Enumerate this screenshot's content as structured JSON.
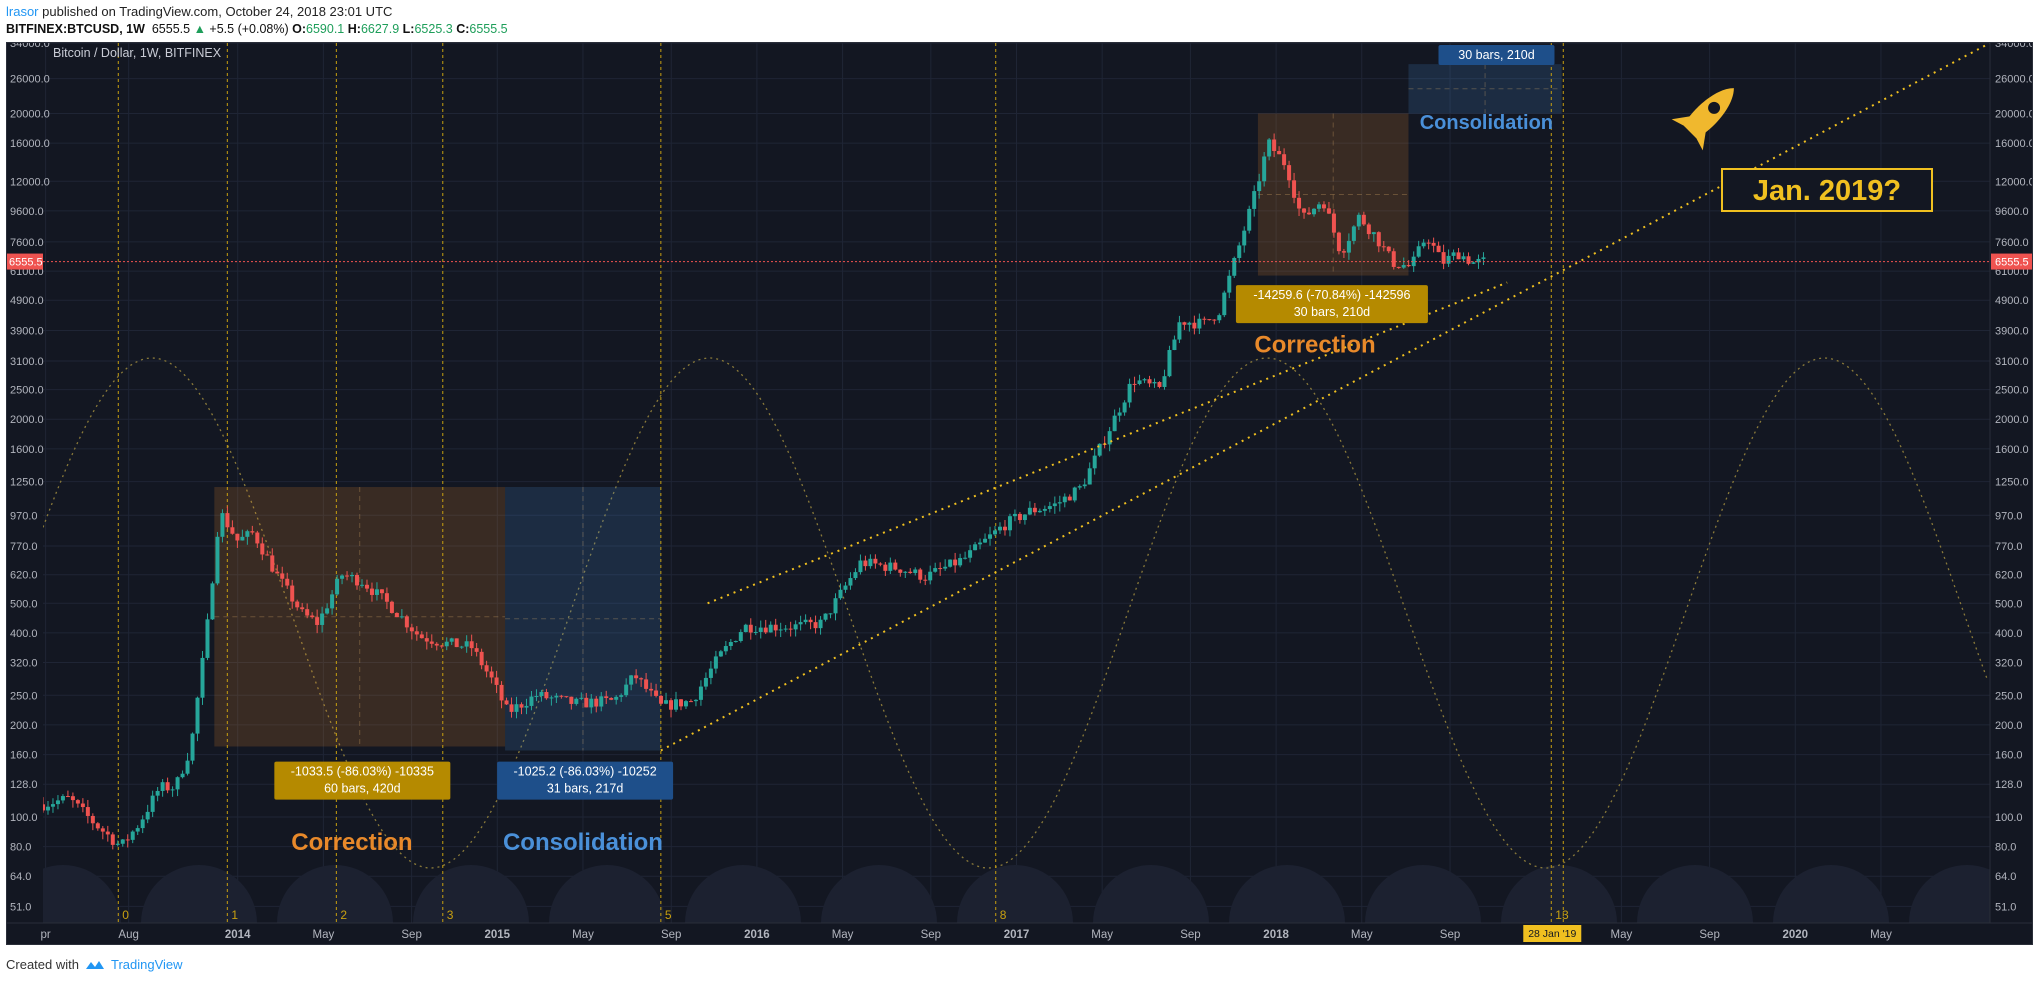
{
  "header": {
    "author": "lrasor",
    "published_text": "published on TradingView.com, October 24, 2018 23:01 UTC"
  },
  "ohlc": {
    "symbol": "BITFINEX:BTCUSD, 1W",
    "last": "6555.5",
    "change_arrow": "▲",
    "change": "+5.5 (+0.08%)",
    "o_label": "O:",
    "o": "6590.1",
    "h_label": "H:",
    "h": "6627.9",
    "l_label": "L:",
    "l": "6525.3",
    "c_label": "C:",
    "c": "6555.5"
  },
  "footer": {
    "created_with": "Created with",
    "brand": "TradingView"
  },
  "colors": {
    "background": "#131722",
    "grid": "#1f2535",
    "candle_up": "#26a69a",
    "candle_down": "#ef5350",
    "accent_orange": "#e8892a",
    "accent_blue": "#4a90d9",
    "yellow": "#f0c020",
    "price_line": "#ef5350"
  },
  "chart_data": {
    "type": "candlestick",
    "title": "Bitcoin / Dollar, 1W, BITFINEX",
    "scale": "log",
    "ylim": [
      45,
      34000
    ],
    "xlim": [
      2013.25,
      2020.75
    ],
    "y_ticks": [
      "34000.0",
      "26000.0",
      "20000.0",
      "16000.0",
      "12000.0",
      "9600.0",
      "7600.0",
      "6100.0",
      "4900.0",
      "3900.0",
      "3100.0",
      "2500.0",
      "2000.0",
      "1600.0",
      "1250.0",
      "970.0",
      "770.0",
      "620.0",
      "500.0",
      "400.0",
      "320.0",
      "250.0",
      "200.0",
      "160.0",
      "128.0",
      "100.0",
      "80.0",
      "64.0",
      "51.0"
    ],
    "x_ticks": [
      {
        "label": "pr",
        "t": 2013.26
      },
      {
        "label": "Aug",
        "t": 2013.58
      },
      {
        "label": "2014",
        "t": 2014.0
      },
      {
        "label": "May",
        "t": 2014.33
      },
      {
        "label": "Sep",
        "t": 2014.67
      },
      {
        "label": "2015",
        "t": 2015.0
      },
      {
        "label": "May",
        "t": 2015.33
      },
      {
        "label": "Sep",
        "t": 2015.67
      },
      {
        "label": "2016",
        "t": 2016.0
      },
      {
        "label": "May",
        "t": 2016.33
      },
      {
        "label": "Sep",
        "t": 2016.67
      },
      {
        "label": "2017",
        "t": 2017.0
      },
      {
        "label": "May",
        "t": 2017.33
      },
      {
        "label": "Sep",
        "t": 2017.67
      },
      {
        "label": "2018",
        "t": 2018.0
      },
      {
        "label": "May",
        "t": 2018.33
      },
      {
        "label": "Sep",
        "t": 2018.67
      },
      {
        "label": "May",
        "t": 2019.33
      },
      {
        "label": "Sep",
        "t": 2019.67
      },
      {
        "label": "2020",
        "t": 2020.0
      },
      {
        "label": "May",
        "t": 2020.33
      }
    ],
    "current_price": 6555.5,
    "current_price_label": "6555.5",
    "date_marker": {
      "label": "28 Jan '19",
      "t": 2019.06
    },
    "cycle_lines": [
      {
        "label": "0",
        "t": 2013.54
      },
      {
        "label": "1",
        "t": 2013.96
      },
      {
        "label": "2",
        "t": 2014.38
      },
      {
        "label": "3",
        "t": 2014.79
      },
      {
        "label": "5",
        "t": 2015.63
      },
      {
        "label": "8",
        "t": 2016.92
      },
      {
        "label": "13",
        "t": 2019.06
      }
    ],
    "candle_path": [
      {
        "t": 2013.25,
        "v": 110
      },
      {
        "t": 2013.35,
        "v": 115
      },
      {
        "t": 2013.45,
        "v": 95
      },
      {
        "t": 2013.55,
        "v": 80
      },
      {
        "t": 2013.62,
        "v": 95
      },
      {
        "t": 2013.7,
        "v": 125
      },
      {
        "t": 2013.76,
        "v": 125
      },
      {
        "t": 2013.82,
        "v": 170
      },
      {
        "t": 2013.88,
        "v": 400
      },
      {
        "t": 2013.93,
        "v": 1000
      },
      {
        "t": 2014.0,
        "v": 800
      },
      {
        "t": 2014.06,
        "v": 850
      },
      {
        "t": 2014.15,
        "v": 620
      },
      {
        "t": 2014.25,
        "v": 460
      },
      {
        "t": 2014.31,
        "v": 430
      },
      {
        "t": 2014.4,
        "v": 620
      },
      {
        "t": 2014.48,
        "v": 590
      },
      {
        "t": 2014.6,
        "v": 480
      },
      {
        "t": 2014.7,
        "v": 390
      },
      {
        "t": 2014.8,
        "v": 370
      },
      {
        "t": 2014.9,
        "v": 360
      },
      {
        "t": 2014.98,
        "v": 280
      },
      {
        "t": 2015.04,
        "v": 220
      },
      {
        "t": 2015.15,
        "v": 250
      },
      {
        "t": 2015.3,
        "v": 235
      },
      {
        "t": 2015.45,
        "v": 240
      },
      {
        "t": 2015.53,
        "v": 290
      },
      {
        "t": 2015.63,
        "v": 230
      },
      {
        "t": 2015.75,
        "v": 240
      },
      {
        "t": 2015.85,
        "v": 330
      },
      {
        "t": 2015.95,
        "v": 420
      },
      {
        "t": 2016.05,
        "v": 420
      },
      {
        "t": 2016.15,
        "v": 420
      },
      {
        "t": 2016.25,
        "v": 430
      },
      {
        "t": 2016.4,
        "v": 680
      },
      {
        "t": 2016.55,
        "v": 650
      },
      {
        "t": 2016.65,
        "v": 610
      },
      {
        "t": 2016.8,
        "v": 700
      },
      {
        "t": 2016.95,
        "v": 900
      },
      {
        "t": 2017.05,
        "v": 1000
      },
      {
        "t": 2017.15,
        "v": 1050
      },
      {
        "t": 2017.25,
        "v": 1200
      },
      {
        "t": 2017.35,
        "v": 1800
      },
      {
        "t": 2017.45,
        "v": 2700
      },
      {
        "t": 2017.55,
        "v": 2500
      },
      {
        "t": 2017.63,
        "v": 4200
      },
      {
        "t": 2017.72,
        "v": 4100
      },
      {
        "t": 2017.78,
        "v": 4500
      },
      {
        "t": 2017.85,
        "v": 7000
      },
      {
        "t": 2017.92,
        "v": 11000
      },
      {
        "t": 2017.97,
        "v": 16000
      },
      {
        "t": 2018.04,
        "v": 13500
      },
      {
        "t": 2018.1,
        "v": 9000
      },
      {
        "t": 2018.18,
        "v": 10500
      },
      {
        "t": 2018.25,
        "v": 7000
      },
      {
        "t": 2018.32,
        "v": 9200
      },
      {
        "t": 2018.38,
        "v": 8000
      },
      {
        "t": 2018.45,
        "v": 6500
      },
      {
        "t": 2018.52,
        "v": 6300
      },
      {
        "t": 2018.58,
        "v": 8000
      },
      {
        "t": 2018.64,
        "v": 6500
      },
      {
        "t": 2018.7,
        "v": 7000
      },
      {
        "t": 2018.76,
        "v": 6500
      },
      {
        "t": 2018.8,
        "v": 6555.5
      }
    ],
    "annotations": [
      {
        "kind": "range",
        "color": "orange",
        "t0": 2013.91,
        "t1": 2015.03,
        "v0": 170,
        "v1": 1200,
        "line1": "-1033.5 (-86.03%) -10335",
        "line2": "60 bars, 420d",
        "caption": "Correction"
      },
      {
        "kind": "range",
        "color": "blue",
        "t0": 2015.03,
        "t1": 2015.63,
        "v0": 165,
        "v1": 1200,
        "line1": "-1025.2 (-86.03%) -10252",
        "line2": "31 bars, 217d",
        "caption": "Consolidation"
      },
      {
        "kind": "range",
        "color": "orange",
        "t0": 2017.93,
        "t1": 2018.51,
        "v0": 5900,
        "v1": 20000,
        "line1": "-14259.6 (-70.84%) -142596",
        "line2": "30 bars, 210d",
        "caption": "Correction"
      },
      {
        "kind": "range",
        "color": "blue",
        "t0": 2018.51,
        "t1": 2019.1,
        "v0": 20000,
        "v1": 29000,
        "line1": "30 bars, 210d",
        "caption": "Consolidation"
      }
    ],
    "trendlines": [
      {
        "t0": 2015.63,
        "v0": 165,
        "t1": 2020.75,
        "v1": 34000
      },
      {
        "t0": 2015.81,
        "v0": 500,
        "t1": 2018.89,
        "v1": 5600
      }
    ],
    "callout": "Jan. 2019?"
  }
}
